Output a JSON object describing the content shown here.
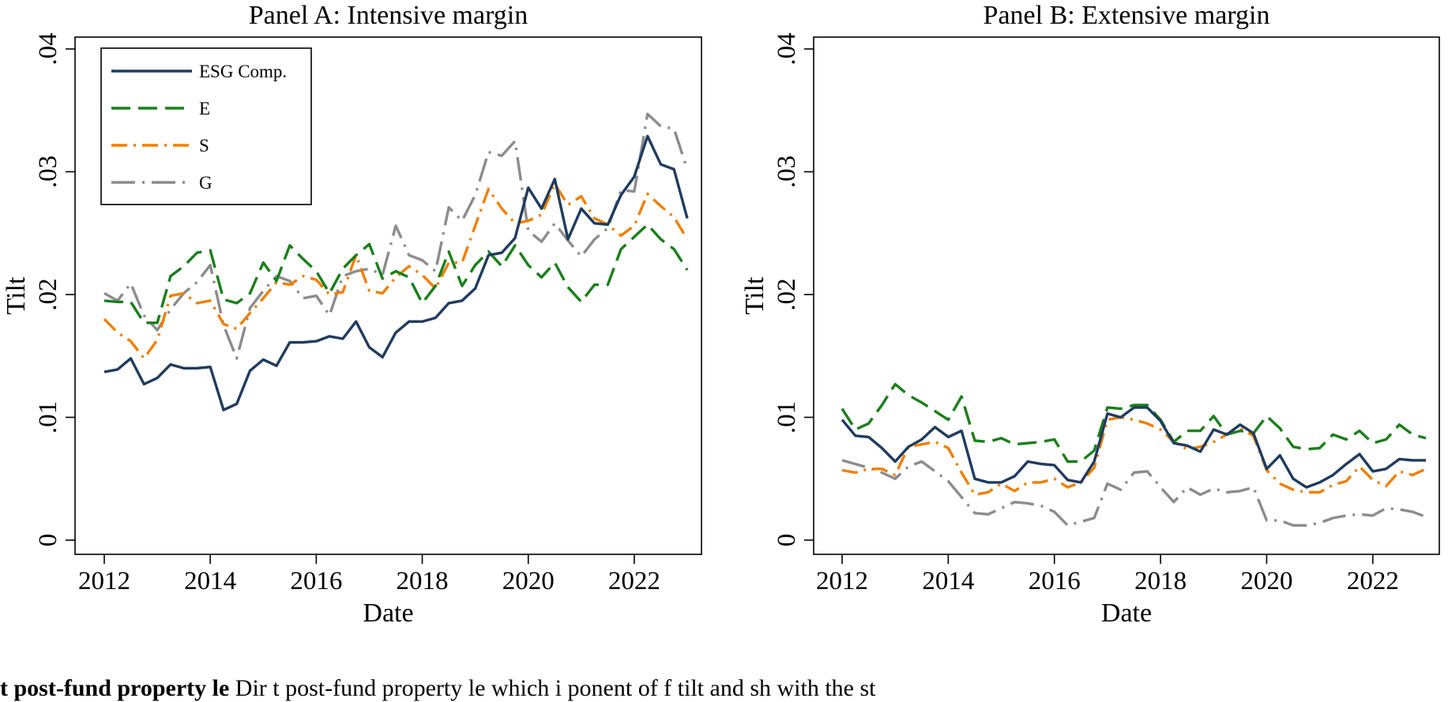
{
  "caption": {
    "bold": "t post-fund property le",
    "rest": "  Dir t post-fund property le which i ponent of f tilt and sh with the st"
  },
  "chart_data": [
    {
      "type": "line",
      "title": "Panel A: Intensive margin",
      "xlabel": "Date",
      "ylabel": "Tilt",
      "xlim": [
        2012,
        2023
      ],
      "ylim": [
        0,
        0.04
      ],
      "x_ticks": [
        "2012",
        "2014",
        "2016",
        "2018",
        "2020",
        "2022"
      ],
      "y_ticks": [
        "0",
        ".01",
        ".02",
        ".03",
        ".04"
      ],
      "legend_position": "top-left",
      "grid": false,
      "x": [
        2012.0,
        2012.25,
        2012.5,
        2012.75,
        2013.0,
        2013.25,
        2013.5,
        2013.75,
        2014.0,
        2014.25,
        2014.5,
        2014.75,
        2015.0,
        2015.25,
        2015.5,
        2015.75,
        2016.0,
        2016.25,
        2016.5,
        2016.75,
        2017.0,
        2017.25,
        2017.5,
        2017.75,
        2018.0,
        2018.25,
        2018.5,
        2018.75,
        2019.0,
        2019.25,
        2019.5,
        2019.75,
        2020.0,
        2020.25,
        2020.5,
        2020.75,
        2021.0,
        2021.25,
        2021.5,
        2021.75,
        2022.0,
        2022.25,
        2022.5,
        2022.75,
        2023.0
      ],
      "series": [
        {
          "name": "ESG Comp.",
          "color": "#1f3b5f",
          "dash": "solid",
          "values": [
            0.0137,
            0.0139,
            0.0148,
            0.0127,
            0.0132,
            0.0143,
            0.014,
            0.014,
            0.0141,
            0.0106,
            0.0111,
            0.0138,
            0.0147,
            0.0142,
            0.0161,
            0.0161,
            0.0162,
            0.0166,
            0.0164,
            0.0178,
            0.0157,
            0.0149,
            0.0169,
            0.0178,
            0.0178,
            0.0181,
            0.0193,
            0.0195,
            0.0205,
            0.0232,
            0.0234,
            0.0246,
            0.0287,
            0.027,
            0.0294,
            0.0245,
            0.027,
            0.0258,
            0.0257,
            0.0281,
            0.0296,
            0.0329,
            0.0306,
            0.0302,
            0.0262
          ]
        },
        {
          "name": "E",
          "color": "#1a7f1a",
          "dash": "long-dash",
          "values": [
            0.0195,
            0.0194,
            0.0194,
            0.0177,
            0.0177,
            0.0215,
            0.0223,
            0.0234,
            0.0236,
            0.0196,
            0.0193,
            0.0201,
            0.0226,
            0.0211,
            0.024,
            0.0229,
            0.0219,
            0.0201,
            0.0221,
            0.0232,
            0.0241,
            0.0213,
            0.0219,
            0.0214,
            0.0193,
            0.0207,
            0.0235,
            0.0207,
            0.0224,
            0.0235,
            0.0223,
            0.024,
            0.0224,
            0.0214,
            0.0226,
            0.0206,
            0.0194,
            0.0208,
            0.0208,
            0.0237,
            0.0247,
            0.0257,
            0.0245,
            0.0237,
            0.022
          ]
        },
        {
          "name": "S",
          "color": "#f07f00",
          "dash": "dash-dot",
          "values": [
            0.018,
            0.0169,
            0.0162,
            0.0148,
            0.0163,
            0.0199,
            0.0201,
            0.0193,
            0.0195,
            0.0176,
            0.0172,
            0.0185,
            0.0197,
            0.021,
            0.0208,
            0.0215,
            0.0212,
            0.02,
            0.0202,
            0.0232,
            0.0203,
            0.0201,
            0.0214,
            0.0223,
            0.0216,
            0.0205,
            0.0226,
            0.0226,
            0.0256,
            0.0286,
            0.027,
            0.0258,
            0.026,
            0.0265,
            0.029,
            0.0273,
            0.028,
            0.0262,
            0.0257,
            0.0248,
            0.0256,
            0.0282,
            0.0272,
            0.0263,
            0.0245
          ]
        },
        {
          "name": "G",
          "color": "#8c8c8c",
          "dash": "long-dash-dot",
          "values": [
            0.0201,
            0.0195,
            0.0209,
            0.0183,
            0.0171,
            0.0188,
            0.0201,
            0.021,
            0.0224,
            0.0175,
            0.0148,
            0.0189,
            0.0203,
            0.0215,
            0.0211,
            0.0197,
            0.0199,
            0.0183,
            0.0215,
            0.0219,
            0.0221,
            0.0216,
            0.0256,
            0.0232,
            0.0228,
            0.0219,
            0.0271,
            0.026,
            0.0281,
            0.0316,
            0.0313,
            0.0325,
            0.0252,
            0.0243,
            0.0258,
            0.0244,
            0.0231,
            0.0245,
            0.0254,
            0.0285,
            0.0284,
            0.0347,
            0.0337,
            0.0335,
            0.0302
          ]
        }
      ]
    },
    {
      "type": "line",
      "title": "Panel B: Extensive margin",
      "xlabel": "Date",
      "ylabel": "Tilt",
      "xlim": [
        2012,
        2023
      ],
      "ylim": [
        0,
        0.04
      ],
      "x_ticks": [
        "2012",
        "2014",
        "2016",
        "2018",
        "2020",
        "2022"
      ],
      "y_ticks": [
        "0",
        ".01",
        ".02",
        ".03",
        ".04"
      ],
      "grid": false,
      "x": [
        2012.0,
        2012.25,
        2012.5,
        2012.75,
        2013.0,
        2013.25,
        2013.5,
        2013.75,
        2014.0,
        2014.25,
        2014.5,
        2014.75,
        2015.0,
        2015.25,
        2015.5,
        2015.75,
        2016.0,
        2016.25,
        2016.5,
        2016.75,
        2017.0,
        2017.25,
        2017.5,
        2017.75,
        2018.0,
        2018.25,
        2018.5,
        2018.75,
        2019.0,
        2019.25,
        2019.5,
        2019.75,
        2020.0,
        2020.25,
        2020.5,
        2020.75,
        2021.0,
        2021.25,
        2021.5,
        2021.75,
        2022.0,
        2022.25,
        2022.5,
        2022.75,
        2023.0
      ],
      "series": [
        {
          "name": "ESG Comp.",
          "color": "#1f3b5f",
          "dash": "solid",
          "values": [
            0.0098,
            0.0085,
            0.0084,
            0.0075,
            0.0064,
            0.0076,
            0.0082,
            0.0092,
            0.0084,
            0.0089,
            0.005,
            0.0047,
            0.0047,
            0.0052,
            0.0064,
            0.0062,
            0.0061,
            0.0049,
            0.0047,
            0.0064,
            0.0103,
            0.01,
            0.0108,
            0.0108,
            0.0097,
            0.0079,
            0.0077,
            0.0072,
            0.009,
            0.0086,
            0.0094,
            0.0087,
            0.0058,
            0.0069,
            0.005,
            0.0043,
            0.0047,
            0.0053,
            0.0062,
            0.007,
            0.0056,
            0.0058,
            0.0066,
            0.0065,
            0.0065
          ]
        },
        {
          "name": "E",
          "color": "#1a7f1a",
          "dash": "long-dash",
          "values": [
            0.0107,
            0.009,
            0.0095,
            0.011,
            0.0127,
            0.0118,
            0.0112,
            0.0105,
            0.0098,
            0.0117,
            0.0081,
            0.008,
            0.0083,
            0.0078,
            0.0079,
            0.008,
            0.0082,
            0.0064,
            0.0064,
            0.0073,
            0.0108,
            0.0107,
            0.011,
            0.011,
            0.0098,
            0.008,
            0.0089,
            0.0089,
            0.0101,
            0.0086,
            0.0089,
            0.0087,
            0.0101,
            0.0091,
            0.0076,
            0.0074,
            0.0075,
            0.0086,
            0.0082,
            0.0089,
            0.0079,
            0.0082,
            0.0094,
            0.0086,
            0.0083
          ]
        },
        {
          "name": "S",
          "color": "#f07f00",
          "dash": "dash-dot",
          "values": [
            0.0057,
            0.0055,
            0.0058,
            0.0058,
            0.0053,
            0.0076,
            0.0078,
            0.008,
            0.0075,
            0.0055,
            0.0037,
            0.0039,
            0.0046,
            0.004,
            0.0047,
            0.0047,
            0.005,
            0.0043,
            0.0047,
            0.0059,
            0.0098,
            0.01,
            0.0098,
            0.0095,
            0.009,
            0.008,
            0.0074,
            0.0076,
            0.008,
            0.0086,
            0.0091,
            0.0085,
            0.0057,
            0.0046,
            0.0041,
            0.0039,
            0.0039,
            0.0045,
            0.0048,
            0.006,
            0.0049,
            0.0044,
            0.0056,
            0.0053,
            0.0058
          ]
        },
        {
          "name": "G",
          "color": "#8c8c8c",
          "dash": "long-dash-dot",
          "values": [
            0.0065,
            0.0062,
            0.0059,
            0.0055,
            0.005,
            0.006,
            0.0064,
            0.0056,
            0.0048,
            0.0035,
            0.0022,
            0.0021,
            0.0026,
            0.0031,
            0.003,
            0.0028,
            0.0023,
            0.0012,
            0.0015,
            0.0018,
            0.0046,
            0.0041,
            0.0055,
            0.0056,
            0.0043,
            0.0031,
            0.0043,
            0.0037,
            0.0042,
            0.0039,
            0.004,
            0.0043,
            0.0016,
            0.0016,
            0.0012,
            0.0012,
            0.0014,
            0.0018,
            0.002,
            0.0021,
            0.002,
            0.0026,
            0.0025,
            0.0023,
            0.0019
          ]
        }
      ]
    }
  ]
}
